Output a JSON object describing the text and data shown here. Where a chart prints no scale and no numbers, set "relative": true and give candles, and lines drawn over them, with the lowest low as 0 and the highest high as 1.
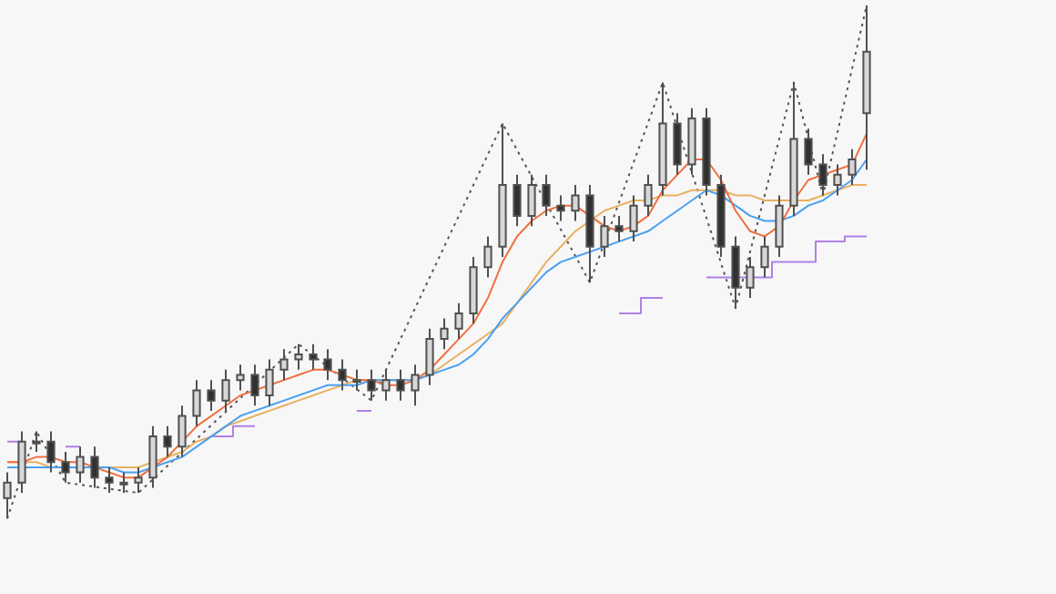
{
  "chart_data": {
    "type": "candlestick",
    "relative": true,
    "grid": false,
    "legend": false,
    "categories": [
      null,
      null,
      null,
      null,
      null,
      null,
      null,
      null,
      null,
      null,
      null,
      null,
      null,
      null,
      null,
      null,
      null,
      null,
      null,
      null,
      null,
      null,
      null,
      null,
      null,
      null,
      null,
      null,
      null,
      null,
      null,
      null,
      null,
      null,
      null,
      null,
      null,
      null,
      null,
      null,
      null,
      null,
      null,
      null,
      null,
      null,
      null,
      null,
      null,
      null,
      null,
      null,
      null,
      null,
      null,
      null,
      null,
      null,
      null,
      null
    ],
    "ohlc": [
      [
        0.04,
        0.09,
        0.0,
        0.07
      ],
      [
        0.07,
        0.17,
        0.05,
        0.15
      ],
      [
        0.15,
        0.17,
        0.13,
        0.15
      ],
      [
        0.15,
        0.17,
        0.09,
        0.11
      ],
      [
        0.11,
        0.13,
        0.07,
        0.09
      ],
      [
        0.09,
        0.14,
        0.07,
        0.12
      ],
      [
        0.12,
        0.14,
        0.06,
        0.08
      ],
      [
        0.08,
        0.1,
        0.05,
        0.07
      ],
      [
        0.07,
        0.09,
        0.05,
        0.07
      ],
      [
        0.07,
        0.1,
        0.05,
        0.08
      ],
      [
        0.08,
        0.18,
        0.06,
        0.16
      ],
      [
        0.16,
        0.18,
        0.12,
        0.14
      ],
      [
        0.14,
        0.22,
        0.12,
        0.2
      ],
      [
        0.2,
        0.27,
        0.18,
        0.25
      ],
      [
        0.25,
        0.27,
        0.21,
        0.23
      ],
      [
        0.23,
        0.29,
        0.21,
        0.27
      ],
      [
        0.27,
        0.3,
        0.25,
        0.28
      ],
      [
        0.28,
        0.3,
        0.22,
        0.24
      ],
      [
        0.24,
        0.31,
        0.22,
        0.29
      ],
      [
        0.29,
        0.33,
        0.27,
        0.31
      ],
      [
        0.31,
        0.34,
        0.29,
        0.32
      ],
      [
        0.32,
        0.34,
        0.29,
        0.31
      ],
      [
        0.31,
        0.33,
        0.27,
        0.29
      ],
      [
        0.29,
        0.31,
        0.25,
        0.27
      ],
      [
        0.27,
        0.29,
        0.25,
        0.27
      ],
      [
        0.27,
        0.29,
        0.23,
        0.25
      ],
      [
        0.25,
        0.29,
        0.23,
        0.27
      ],
      [
        0.27,
        0.29,
        0.23,
        0.25
      ],
      [
        0.25,
        0.3,
        0.22,
        0.28
      ],
      [
        0.28,
        0.37,
        0.26,
        0.35
      ],
      [
        0.35,
        0.39,
        0.33,
        0.37
      ],
      [
        0.37,
        0.42,
        0.35,
        0.4
      ],
      [
        0.4,
        0.51,
        0.38,
        0.49
      ],
      [
        0.49,
        0.55,
        0.47,
        0.53
      ],
      [
        0.53,
        0.77,
        0.51,
        0.65
      ],
      [
        0.65,
        0.67,
        0.57,
        0.59
      ],
      [
        0.59,
        0.67,
        0.57,
        0.65
      ],
      [
        0.65,
        0.67,
        0.59,
        0.61
      ],
      [
        0.61,
        0.63,
        0.58,
        0.6
      ],
      [
        0.6,
        0.65,
        0.58,
        0.63
      ],
      [
        0.63,
        0.65,
        0.46,
        0.53
      ],
      [
        0.53,
        0.59,
        0.51,
        0.57
      ],
      [
        0.57,
        0.59,
        0.54,
        0.56
      ],
      [
        0.56,
        0.63,
        0.54,
        0.61
      ],
      [
        0.61,
        0.67,
        0.59,
        0.65
      ],
      [
        0.65,
        0.85,
        0.63,
        0.77
      ],
      [
        0.77,
        0.79,
        0.67,
        0.69
      ],
      [
        0.69,
        0.8,
        0.67,
        0.78
      ],
      [
        0.78,
        0.8,
        0.63,
        0.65
      ],
      [
        0.65,
        0.67,
        0.51,
        0.53
      ],
      [
        0.53,
        0.55,
        0.41,
        0.45
      ],
      [
        0.45,
        0.51,
        0.43,
        0.49
      ],
      [
        0.49,
        0.55,
        0.47,
        0.53
      ],
      [
        0.53,
        0.63,
        0.51,
        0.61
      ],
      [
        0.61,
        0.85,
        0.59,
        0.74
      ],
      [
        0.74,
        0.76,
        0.67,
        0.69
      ],
      [
        0.69,
        0.71,
        0.63,
        0.65
      ],
      [
        0.65,
        0.69,
        0.63,
        0.67
      ],
      [
        0.67,
        0.72,
        0.65,
        0.7
      ],
      [
        0.79,
        1.0,
        0.68,
        0.91
      ]
    ],
    "series": [
      {
        "type": "line",
        "color": "#f07040",
        "values": [
          0.11,
          0.11,
          0.12,
          0.12,
          0.11,
          0.11,
          0.1,
          0.09,
          0.08,
          0.08,
          0.1,
          0.12,
          0.15,
          0.18,
          0.2,
          0.22,
          0.24,
          0.25,
          0.26,
          0.27,
          0.28,
          0.29,
          0.29,
          0.28,
          0.27,
          0.27,
          0.26,
          0.26,
          0.27,
          0.29,
          0.32,
          0.35,
          0.38,
          0.43,
          0.5,
          0.55,
          0.58,
          0.6,
          0.61,
          0.61,
          0.59,
          0.57,
          0.56,
          0.57,
          0.59,
          0.64,
          0.67,
          0.7,
          0.7,
          0.66,
          0.6,
          0.56,
          0.55,
          0.57,
          0.62,
          0.66,
          0.67,
          0.68,
          0.69,
          0.75
        ]
      },
      {
        "type": "line",
        "color": "#4aa0f0",
        "values": [
          0.1,
          0.1,
          0.1,
          0.1,
          0.1,
          0.1,
          0.1,
          0.1,
          0.09,
          0.09,
          0.1,
          0.11,
          0.12,
          0.14,
          0.16,
          0.18,
          0.2,
          0.21,
          0.22,
          0.23,
          0.24,
          0.25,
          0.26,
          0.26,
          0.26,
          0.27,
          0.27,
          0.27,
          0.27,
          0.28,
          0.29,
          0.3,
          0.32,
          0.35,
          0.39,
          0.42,
          0.45,
          0.48,
          0.5,
          0.51,
          0.52,
          0.53,
          0.54,
          0.55,
          0.56,
          0.58,
          0.6,
          0.62,
          0.64,
          0.63,
          0.61,
          0.59,
          0.58,
          0.58,
          0.59,
          0.61,
          0.62,
          0.64,
          0.66,
          0.7
        ]
      },
      {
        "type": "line",
        "color": "#e8b060",
        "values": [
          0.11,
          0.11,
          0.11,
          0.1,
          0.1,
          0.1,
          0.1,
          0.1,
          0.1,
          0.1,
          0.11,
          0.12,
          0.13,
          0.15,
          0.16,
          0.18,
          0.19,
          0.2,
          0.21,
          0.22,
          0.23,
          0.24,
          0.25,
          0.26,
          0.27,
          0.27,
          0.27,
          0.27,
          0.27,
          0.28,
          0.3,
          0.32,
          0.34,
          0.36,
          0.38,
          0.42,
          0.46,
          0.5,
          0.53,
          0.56,
          0.58,
          0.6,
          0.61,
          0.62,
          0.62,
          0.63,
          0.63,
          0.64,
          0.64,
          0.64,
          0.63,
          0.63,
          0.62,
          0.62,
          0.62,
          0.62,
          0.63,
          0.64,
          0.65,
          0.65
        ]
      },
      {
        "type": "line",
        "color": "#555555",
        "line_style": "dotted",
        "values": [
          0.0,
          null,
          0.17,
          null,
          0.07,
          null,
          null,
          null,
          null,
          0.05,
          null,
          null,
          null,
          null,
          null,
          null,
          null,
          null,
          null,
          null,
          0.34,
          null,
          null,
          null,
          null,
          0.23,
          null,
          null,
          null,
          null,
          null,
          null,
          null,
          null,
          0.77,
          null,
          null,
          null,
          null,
          null,
          0.46,
          null,
          null,
          null,
          null,
          0.85,
          null,
          null,
          null,
          null,
          0.41,
          null,
          null,
          null,
          0.85,
          null,
          0.63,
          null,
          null,
          1.0
        ]
      },
      {
        "type": "step",
        "color": "#b080e8",
        "values": [
          0.15,
          0.15,
          null,
          null,
          0.14,
          0.14,
          null,
          null,
          null,
          null,
          null,
          null,
          null,
          null,
          0.16,
          0.16,
          0.18,
          0.18,
          null,
          null,
          null,
          null,
          null,
          null,
          0.21,
          0.21,
          null,
          null,
          null,
          null,
          null,
          null,
          null,
          null,
          null,
          null,
          null,
          null,
          null,
          null,
          null,
          null,
          0.4,
          0.4,
          0.43,
          0.43,
          null,
          null,
          0.47,
          0.47,
          0.47,
          0.47,
          0.47,
          0.5,
          0.5,
          0.5,
          0.54,
          0.54,
          0.55,
          0.55
        ]
      }
    ]
  }
}
